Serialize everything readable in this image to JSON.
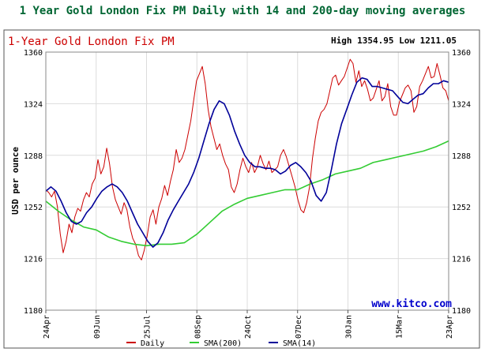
{
  "chart_data": {
    "type": "line",
    "title": "1 Year Gold London Fix PM Daily with 14 and 200-day moving averages",
    "subtitle": "1-Year Gold London Fix PM",
    "high_low": "High 1354.95 Low 1211.05",
    "ylabel": "USD per ounce",
    "watermark": "www.kitco.com",
    "ylim": [
      1180,
      1360
    ],
    "yticks": [
      "1360",
      "1324",
      "1288",
      "1252",
      "1216",
      "1180"
    ],
    "xticks": [
      "24Apr",
      "09Jun",
      "25Jul",
      "08Sep",
      "24Oct",
      "07Dec",
      "30Jan",
      "15Mar",
      "23Apr"
    ],
    "grid": true,
    "legend_position": "bottom",
    "series": [
      {
        "name": "Daily",
        "color": "#cc0000",
        "values": [
          1264,
          1262,
          1259,
          1263,
          1252,
          1233,
          1220,
          1228,
          1240,
          1234,
          1245,
          1251,
          1249,
          1257,
          1262,
          1259,
          1268,
          1272,
          1285,
          1275,
          1280,
          1293,
          1282,
          1266,
          1257,
          1252,
          1247,
          1255,
          1250,
          1238,
          1230,
          1226,
          1218,
          1215,
          1222,
          1232,
          1245,
          1250,
          1240,
          1252,
          1258,
          1267,
          1260,
          1270,
          1278,
          1292,
          1283,
          1286,
          1292,
          1302,
          1312,
          1326,
          1340,
          1345,
          1350,
          1338,
          1320,
          1308,
          1300,
          1292,
          1296,
          1288,
          1282,
          1278,
          1266,
          1262,
          1268,
          1278,
          1286,
          1280,
          1276,
          1283,
          1276,
          1280,
          1288,
          1282,
          1278,
          1284,
          1276,
          1278,
          1280,
          1288,
          1292,
          1287,
          1280,
          1273,
          1266,
          1257,
          1250,
          1248,
          1255,
          1266,
          1286,
          1300,
          1312,
          1318,
          1320,
          1324,
          1333,
          1342,
          1344,
          1337,
          1340,
          1343,
          1349,
          1355,
          1352,
          1339,
          1347,
          1336,
          1340,
          1334,
          1326,
          1328,
          1334,
          1340,
          1326,
          1329,
          1338,
          1322,
          1316,
          1316,
          1325,
          1330,
          1335,
          1337,
          1333,
          1318,
          1322,
          1336,
          1340,
          1345,
          1350,
          1342,
          1343,
          1352,
          1344,
          1335,
          1333,
          1326
        ]
      },
      {
        "name": "SMA(200)",
        "color": "#33cc33",
        "values": [
          1256,
          1249,
          1243,
          1238,
          1236,
          1231,
          1228,
          1226,
          1225,
          1226,
          1226,
          1227,
          1233,
          1241,
          1249,
          1254,
          1258,
          1260,
          1262,
          1264,
          1264,
          1268,
          1271,
          1275,
          1277,
          1279,
          1283,
          1285,
          1287,
          1289,
          1291,
          1294,
          1298
        ]
      },
      {
        "name": "SMA(14)",
        "color": "#000099",
        "values": [
          1263,
          1266,
          1263,
          1256,
          1248,
          1242,
          1240,
          1242,
          1248,
          1252,
          1258,
          1263,
          1266,
          1268,
          1266,
          1262,
          1256,
          1248,
          1240,
          1234,
          1228,
          1224,
          1227,
          1234,
          1243,
          1250,
          1256,
          1262,
          1268,
          1276,
          1286,
          1298,
          1310,
          1320,
          1326,
          1324,
          1316,
          1305,
          1296,
          1288,
          1283,
          1280,
          1280,
          1279,
          1279,
          1278,
          1275,
          1277,
          1281,
          1283,
          1280,
          1276,
          1270,
          1260,
          1256,
          1262,
          1278,
          1296,
          1310,
          1320,
          1330,
          1339,
          1342,
          1341,
          1336,
          1336,
          1335,
          1334,
          1333,
          1329,
          1325,
          1324,
          1327,
          1330,
          1331,
          1335,
          1338,
          1338,
          1340,
          1339
        ]
      }
    ]
  }
}
